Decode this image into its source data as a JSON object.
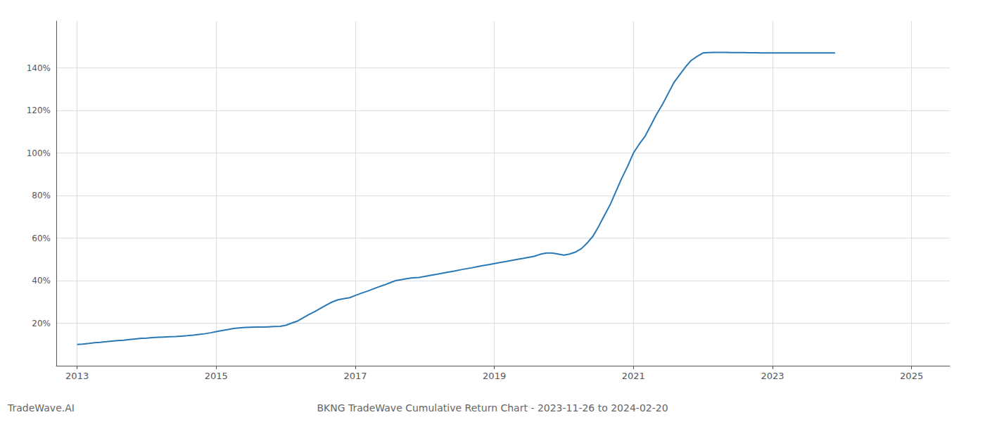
{
  "chart_data": {
    "type": "line",
    "title": "BKNG TradeWave Cumulative Return Chart - 2023-11-26 to 2024-02-20",
    "annotations": [
      "TradeWave.AI"
    ],
    "color": "#2878b5",
    "grid": true,
    "x": [
      2013.0,
      2013.08,
      2013.17,
      2013.25,
      2013.33,
      2013.42,
      2013.5,
      2013.58,
      2013.67,
      2013.75,
      2013.83,
      2013.92,
      2014.0,
      2014.08,
      2014.17,
      2014.25,
      2014.33,
      2014.42,
      2014.5,
      2014.58,
      2014.67,
      2014.75,
      2014.83,
      2014.92,
      2015.0,
      2015.08,
      2015.17,
      2015.25,
      2015.33,
      2015.42,
      2015.5,
      2015.58,
      2015.67,
      2015.75,
      2015.83,
      2015.92,
      2016.0,
      2016.08,
      2016.17,
      2016.25,
      2016.33,
      2016.42,
      2016.5,
      2016.58,
      2016.67,
      2016.75,
      2016.83,
      2016.92,
      2017.0,
      2017.08,
      2017.17,
      2017.25,
      2017.33,
      2017.42,
      2017.5,
      2017.58,
      2017.67,
      2017.75,
      2017.83,
      2017.92,
      2018.0,
      2018.08,
      2018.17,
      2018.25,
      2018.33,
      2018.42,
      2018.5,
      2018.58,
      2018.67,
      2018.75,
      2018.83,
      2018.92,
      2019.0,
      2019.08,
      2019.17,
      2019.25,
      2019.33,
      2019.42,
      2019.5,
      2019.58,
      2019.67,
      2019.75,
      2019.83,
      2019.92,
      2020.0,
      2020.08,
      2020.17,
      2020.25,
      2020.33,
      2020.42,
      2020.5,
      2020.58,
      2020.67,
      2020.75,
      2020.83,
      2020.92,
      2021.0,
      2021.08,
      2021.17,
      2021.25,
      2021.33,
      2021.42,
      2021.5,
      2021.58,
      2021.67,
      2021.75,
      2021.83,
      2021.92,
      2022.0,
      2022.08,
      2022.17,
      2022.25,
      2022.33,
      2022.42,
      2022.5,
      2022.58,
      2022.67,
      2022.75,
      2022.83,
      2022.92,
      2023.0,
      2023.5,
      2023.9
    ],
    "values": [
      10.0,
      10.2,
      10.5,
      10.8,
      11.0,
      11.3,
      11.6,
      11.8,
      12.0,
      12.3,
      12.6,
      12.9,
      13.0,
      13.2,
      13.4,
      13.5,
      13.6,
      13.7,
      13.9,
      14.1,
      14.4,
      14.7,
      15.0,
      15.5,
      16.0,
      16.5,
      17.0,
      17.5,
      17.8,
      18.0,
      18.1,
      18.2,
      18.2,
      18.3,
      18.4,
      18.5,
      19.0,
      20.0,
      21.0,
      22.5,
      24.0,
      25.5,
      27.0,
      28.5,
      30.0,
      31.0,
      31.5,
      32.0,
      33.0,
      34.0,
      35.0,
      36.0,
      37.0,
      38.0,
      39.0,
      40.0,
      40.5,
      41.0,
      41.3,
      41.5,
      42.0,
      42.5,
      43.0,
      43.5,
      44.0,
      44.5,
      45.0,
      45.5,
      46.0,
      46.5,
      47.0,
      47.5,
      48.0,
      48.5,
      49.0,
      49.5,
      50.0,
      50.5,
      51.0,
      51.5,
      52.5,
      53.0,
      53.0,
      52.5,
      52.0,
      52.5,
      53.5,
      55.0,
      57.5,
      61.0,
      65.5,
      70.5,
      76.0,
      82.0,
      88.0,
      94.0,
      100.0,
      104.0,
      108.0,
      113.0,
      118.0,
      123.0,
      128.0,
      133.0,
      137.0,
      140.5,
      143.5,
      145.5,
      147.0,
      147.2,
      147.3,
      147.3,
      147.3,
      147.2,
      147.2,
      147.2,
      147.1,
      147.1,
      147.0,
      147.0,
      147.0,
      147.0,
      147.0
    ],
    "xlim": [
      2012.7,
      2025.55
    ],
    "xticks": [
      2013,
      2015,
      2017,
      2019,
      2021,
      2023,
      2025
    ],
    "ylim": [
      0,
      162
    ],
    "yticks": [
      {
        "value": 20,
        "label": "20%"
      },
      {
        "value": 40,
        "label": "40%"
      },
      {
        "value": 60,
        "label": "60%"
      },
      {
        "value": 80,
        "label": "80%"
      },
      {
        "value": 100,
        "label": "100%"
      },
      {
        "value": 120,
        "label": "120%"
      },
      {
        "value": 140,
        "label": "140%"
      }
    ]
  }
}
